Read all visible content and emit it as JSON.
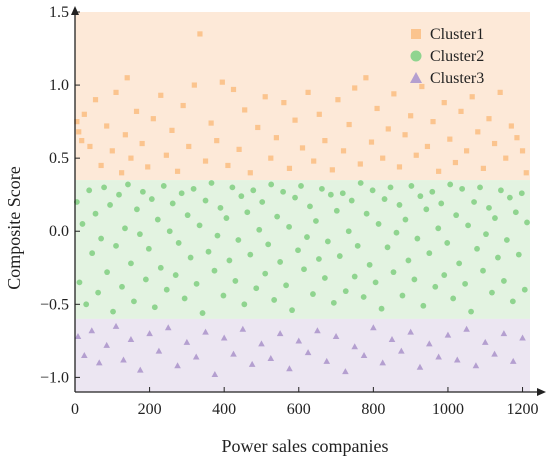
{
  "chart_data": {
    "type": "scatter",
    "title": "",
    "xlabel": "Power sales companies",
    "ylabel": "Composite Score",
    "xlim": [
      0,
      1220
    ],
    "ylim": [
      -1.1,
      1.5
    ],
    "x_ticks": [
      0,
      200,
      400,
      600,
      800,
      1000,
      1200
    ],
    "x_tick_labels": [
      "0",
      "200",
      "400",
      "600",
      "800",
      "1000",
      "1200"
    ],
    "y_ticks": [
      -1.0,
      -0.5,
      0.0,
      0.5,
      1.0,
      1.5
    ],
    "y_tick_labels": [
      "−1.0",
      "−0.5",
      "0.0",
      "0.5",
      "1.0",
      "1.5"
    ],
    "grid": false,
    "legend_position": "top-right",
    "bands": [
      {
        "series": "Cluster1",
        "y_from": 0.35,
        "y_to": 1.5,
        "color": "#fde9d8"
      },
      {
        "series": "Cluster2",
        "y_from": -0.6,
        "y_to": 0.35,
        "color": "#e3f3e1"
      },
      {
        "series": "Cluster3",
        "y_from": -1.1,
        "y_to": -0.6,
        "color": "#ece6f2"
      }
    ],
    "series": [
      {
        "name": "Cluster1",
        "marker": "square",
        "color": "#fbc48e",
        "points": [
          [
            5,
            0.75
          ],
          [
            10,
            0.68
          ],
          [
            18,
            0.62
          ],
          [
            25,
            0.8
          ],
          [
            40,
            0.58
          ],
          [
            55,
            0.9
          ],
          [
            70,
            0.45
          ],
          [
            85,
            0.72
          ],
          [
            100,
            0.55
          ],
          [
            110,
            0.95
          ],
          [
            125,
            0.4
          ],
          [
            135,
            0.66
          ],
          [
            140,
            1.05
          ],
          [
            150,
            0.5
          ],
          [
            165,
            0.82
          ],
          [
            180,
            0.6
          ],
          [
            195,
            0.44
          ],
          [
            210,
            0.77
          ],
          [
            230,
            0.93
          ],
          [
            245,
            0.52
          ],
          [
            260,
            0.69
          ],
          [
            275,
            0.41
          ],
          [
            290,
            0.86
          ],
          [
            305,
            0.58
          ],
          [
            320,
            1.0
          ],
          [
            335,
            1.35
          ],
          [
            350,
            0.48
          ],
          [
            365,
            0.74
          ],
          [
            380,
            0.62
          ],
          [
            395,
            1.02
          ],
          [
            410,
            0.45
          ],
          [
            425,
            0.97
          ],
          [
            440,
            0.56
          ],
          [
            455,
            0.83
          ],
          [
            470,
            0.4
          ],
          [
            490,
            0.71
          ],
          [
            510,
            0.92
          ],
          [
            525,
            0.5
          ],
          [
            540,
            0.64
          ],
          [
            560,
            0.88
          ],
          [
            575,
            0.43
          ],
          [
            590,
            0.76
          ],
          [
            610,
            0.57
          ],
          [
            625,
            0.95
          ],
          [
            640,
            0.48
          ],
          [
            655,
            0.8
          ],
          [
            670,
            0.62
          ],
          [
            690,
            0.42
          ],
          [
            705,
            0.9
          ],
          [
            720,
            0.55
          ],
          [
            735,
            0.73
          ],
          [
            750,
            0.98
          ],
          [
            765,
            0.46
          ],
          [
            780,
            1.05
          ],
          [
            795,
            0.61
          ],
          [
            810,
            0.84
          ],
          [
            825,
            0.5
          ],
          [
            840,
            0.7
          ],
          [
            855,
            0.94
          ],
          [
            870,
            0.44
          ],
          [
            885,
            0.66
          ],
          [
            900,
            0.79
          ],
          [
            915,
            0.52
          ],
          [
            930,
            0.99
          ],
          [
            945,
            0.58
          ],
          [
            960,
            0.75
          ],
          [
            975,
            0.41
          ],
          [
            990,
            0.88
          ],
          [
            1005,
            0.63
          ],
          [
            1020,
            0.47
          ],
          [
            1035,
            0.82
          ],
          [
            1050,
            0.55
          ],
          [
            1065,
            0.92
          ],
          [
            1080,
            0.68
          ],
          [
            1095,
            0.43
          ],
          [
            1110,
            0.77
          ],
          [
            1125,
            0.6
          ],
          [
            1140,
            0.95
          ],
          [
            1155,
            0.5
          ],
          [
            1170,
            0.72
          ],
          [
            1185,
            0.64
          ],
          [
            1200,
            0.55
          ],
          [
            1210,
            0.4
          ]
        ]
      },
      {
        "name": "Cluster2",
        "marker": "circle",
        "color": "#8fd48f",
        "points": [
          [
            5,
            0.2
          ],
          [
            12,
            -0.35
          ],
          [
            20,
            0.05
          ],
          [
            30,
            -0.5
          ],
          [
            38,
            0.28
          ],
          [
            46,
            -0.15
          ],
          [
            55,
            0.12
          ],
          [
            62,
            -0.42
          ],
          [
            70,
            -0.05
          ],
          [
            78,
            0.3
          ],
          [
            86,
            -0.28
          ],
          [
            94,
            0.18
          ],
          [
            102,
            -0.55
          ],
          [
            110,
            -0.1
          ],
          [
            118,
            0.25
          ],
          [
            126,
            -0.38
          ],
          [
            134,
            0.02
          ],
          [
            142,
            0.32
          ],
          [
            150,
            -0.22
          ],
          [
            158,
            -0.48
          ],
          [
            166,
            0.15
          ],
          [
            174,
            -0.02
          ],
          [
            182,
            0.27
          ],
          [
            190,
            -0.33
          ],
          [
            198,
            -0.12
          ],
          [
            206,
            0.22
          ],
          [
            214,
            -0.52
          ],
          [
            222,
            0.08
          ],
          [
            230,
            -0.25
          ],
          [
            238,
            0.31
          ],
          [
            246,
            -0.4
          ],
          [
            254,
            0.0
          ],
          [
            262,
            0.19
          ],
          [
            270,
            -0.3
          ],
          [
            278,
            -0.08
          ],
          [
            286,
            0.26
          ],
          [
            294,
            -0.46
          ],
          [
            302,
            0.11
          ],
          [
            310,
            -0.18
          ],
          [
            318,
            0.29
          ],
          [
            326,
            -0.36
          ],
          [
            334,
            0.04
          ],
          [
            342,
            -0.56
          ],
          [
            350,
            0.21
          ],
          [
            358,
            -0.14
          ],
          [
            366,
            0.33
          ],
          [
            374,
            -0.27
          ],
          [
            382,
            -0.03
          ],
          [
            390,
            0.16
          ],
          [
            398,
            -0.44
          ],
          [
            406,
            0.09
          ],
          [
            414,
            -0.2
          ],
          [
            422,
            0.3
          ],
          [
            430,
            -0.34
          ],
          [
            438,
            -0.06
          ],
          [
            446,
            0.24
          ],
          [
            454,
            -0.5
          ],
          [
            462,
            0.13
          ],
          [
            470,
            -0.16
          ],
          [
            478,
            0.28
          ],
          [
            486,
            -0.39
          ],
          [
            494,
            0.01
          ],
          [
            502,
            0.2
          ],
          [
            510,
            -0.29
          ],
          [
            518,
            -0.09
          ],
          [
            526,
            0.32
          ],
          [
            534,
            -0.47
          ],
          [
            542,
            0.1
          ],
          [
            550,
            -0.21
          ],
          [
            558,
            0.27
          ],
          [
            566,
            -0.37
          ],
          [
            574,
            0.03
          ],
          [
            582,
            -0.54
          ],
          [
            590,
            0.23
          ],
          [
            598,
            -0.13
          ],
          [
            606,
            0.31
          ],
          [
            614,
            -0.26
          ],
          [
            622,
            -0.04
          ],
          [
            630,
            0.17
          ],
          [
            638,
            -0.43
          ],
          [
            646,
            0.07
          ],
          [
            654,
            -0.19
          ],
          [
            662,
            0.29
          ],
          [
            670,
            -0.32
          ],
          [
            678,
            -0.07
          ],
          [
            686,
            0.25
          ],
          [
            694,
            -0.49
          ],
          [
            702,
            0.14
          ],
          [
            710,
            -0.17
          ],
          [
            718,
            0.26
          ],
          [
            726,
            -0.41
          ],
          [
            734,
            0.0
          ],
          [
            742,
            0.21
          ],
          [
            750,
            -0.31
          ],
          [
            758,
            -0.1
          ],
          [
            766,
            0.33
          ],
          [
            774,
            -0.45
          ],
          [
            782,
            0.12
          ],
          [
            790,
            -0.23
          ],
          [
            798,
            0.28
          ],
          [
            806,
            -0.35
          ],
          [
            814,
            0.05
          ],
          [
            822,
            -0.53
          ],
          [
            830,
            0.22
          ],
          [
            838,
            -0.11
          ],
          [
            846,
            0.3
          ],
          [
            854,
            -0.28
          ],
          [
            862,
            -0.01
          ],
          [
            870,
            0.18
          ],
          [
            878,
            -0.44
          ],
          [
            886,
            0.08
          ],
          [
            894,
            -0.2
          ],
          [
            902,
            0.31
          ],
          [
            910,
            -0.33
          ],
          [
            918,
            -0.05
          ],
          [
            926,
            0.24
          ],
          [
            934,
            -0.51
          ],
          [
            942,
            0.15
          ],
          [
            950,
            -0.15
          ],
          [
            958,
            0.27
          ],
          [
            966,
            -0.38
          ],
          [
            974,
            0.02
          ],
          [
            982,
            0.19
          ],
          [
            990,
            -0.3
          ],
          [
            998,
            -0.08
          ],
          [
            1006,
            0.32
          ],
          [
            1014,
            -0.46
          ],
          [
            1022,
            0.11
          ],
          [
            1030,
            -0.22
          ],
          [
            1038,
            0.29
          ],
          [
            1046,
            -0.36
          ],
          [
            1054,
            0.04
          ],
          [
            1062,
            -0.55
          ],
          [
            1070,
            0.2
          ],
          [
            1078,
            -0.12
          ],
          [
            1086,
            0.3
          ],
          [
            1094,
            -0.27
          ],
          [
            1102,
            -0.02
          ],
          [
            1110,
            0.16
          ],
          [
            1118,
            -0.42
          ],
          [
            1126,
            0.09
          ],
          [
            1134,
            -0.18
          ],
          [
            1142,
            0.28
          ],
          [
            1150,
            -0.34
          ],
          [
            1158,
            -0.06
          ],
          [
            1166,
            0.23
          ],
          [
            1174,
            -0.48
          ],
          [
            1182,
            0.13
          ],
          [
            1190,
            -0.16
          ],
          [
            1198,
            0.26
          ],
          [
            1206,
            -0.4
          ],
          [
            1212,
            0.06
          ]
        ]
      },
      {
        "name": "Cluster3",
        "marker": "triangle",
        "color": "#b49fd0",
        "points": [
          [
            8,
            -0.72
          ],
          [
            25,
            -0.85
          ],
          [
            45,
            -0.68
          ],
          [
            65,
            -0.9
          ],
          [
            85,
            -0.78
          ],
          [
            110,
            -0.65
          ],
          [
            130,
            -0.88
          ],
          [
            150,
            -0.74
          ],
          [
            175,
            -0.95
          ],
          [
            200,
            -0.7
          ],
          [
            225,
            -0.82
          ],
          [
            250,
            -0.66
          ],
          [
            275,
            -0.92
          ],
          [
            300,
            -0.76
          ],
          [
            325,
            -0.86
          ],
          [
            350,
            -0.69
          ],
          [
            375,
            -0.98
          ],
          [
            400,
            -0.73
          ],
          [
            425,
            -0.84
          ],
          [
            450,
            -0.67
          ],
          [
            475,
            -0.91
          ],
          [
            500,
            -0.77
          ],
          [
            525,
            -0.87
          ],
          [
            550,
            -0.7
          ],
          [
            575,
            -0.94
          ],
          [
            600,
            -0.75
          ],
          [
            625,
            -0.83
          ],
          [
            650,
            -0.68
          ],
          [
            675,
            -0.89
          ],
          [
            700,
            -0.72
          ],
          [
            725,
            -0.96
          ],
          [
            750,
            -0.79
          ],
          [
            775,
            -0.85
          ],
          [
            800,
            -0.66
          ],
          [
            825,
            -0.9
          ],
          [
            850,
            -0.74
          ],
          [
            875,
            -0.82
          ],
          [
            900,
            -0.69
          ],
          [
            925,
            -0.93
          ],
          [
            950,
            -0.77
          ],
          [
            975,
            -0.86
          ],
          [
            1000,
            -0.71
          ],
          [
            1025,
            -0.88
          ],
          [
            1050,
            -0.67
          ],
          [
            1075,
            -0.92
          ],
          [
            1100,
            -0.76
          ],
          [
            1125,
            -0.84
          ],
          [
            1150,
            -0.7
          ],
          [
            1175,
            -0.89
          ],
          [
            1200,
            -0.73
          ]
        ]
      }
    ]
  }
}
